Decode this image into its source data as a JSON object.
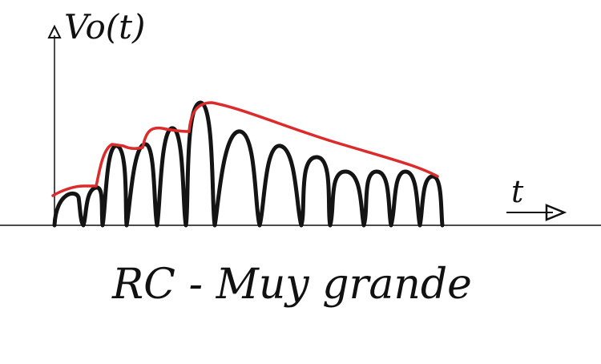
{
  "labels": {
    "y_axis": "Vo(t)",
    "x_axis": "t",
    "caption": "RC - Muy grande"
  },
  "colors": {
    "signal": "#141414",
    "envelope": "#dd2a2a",
    "axis": "#111111"
  }
}
